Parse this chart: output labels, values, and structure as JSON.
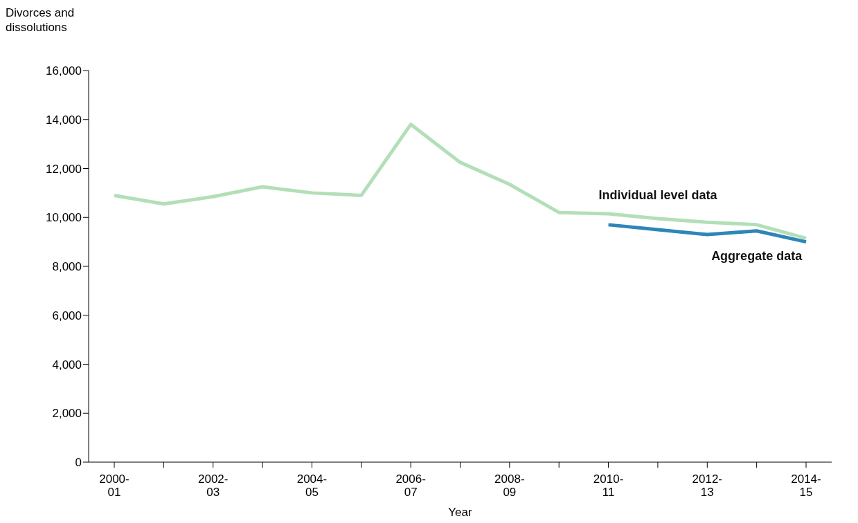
{
  "chart_data": {
    "type": "line",
    "ylabel": "Divorces and dissolutions",
    "xlabel": "Year",
    "categories": [
      "2000-01",
      null,
      "2002-03",
      null,
      "2004-05",
      null,
      "2006-07",
      null,
      "2008-09",
      null,
      "2010-11",
      null,
      "2012-13",
      null,
      "2014-15"
    ],
    "series": [
      {
        "name": "Individual level data",
        "color": "#b3dfb8",
        "values": [
          10900,
          10550,
          10850,
          11250,
          11000,
          10900,
          13800,
          12250,
          11350,
          10200,
          10150,
          9950,
          9800,
          9700,
          9150
        ]
      },
      {
        "name": "Aggregate data",
        "color": "#2e86b8",
        "values": [
          null,
          null,
          null,
          null,
          null,
          null,
          null,
          null,
          null,
          null,
          9700,
          9500,
          9300,
          9450,
          9000
        ]
      }
    ],
    "ylim": [
      0,
      16000
    ],
    "yticks": [
      0,
      {
        "value": 2000,
        "label": "2,000"
      },
      {
        "value": 4000,
        "label": "4,000"
      },
      {
        "value": 6000,
        "label": "6,000"
      },
      {
        "value": 8000,
        "label": "8,000"
      },
      {
        "value": 10000,
        "label": "10,000"
      },
      {
        "value": 12000,
        "label": "12,000"
      },
      {
        "value": 14000,
        "label": "14,000"
      },
      {
        "value": 16000,
        "label": "16,000"
      }
    ],
    "grid": false,
    "legend": false,
    "marker": "none",
    "line_style": "solid"
  }
}
